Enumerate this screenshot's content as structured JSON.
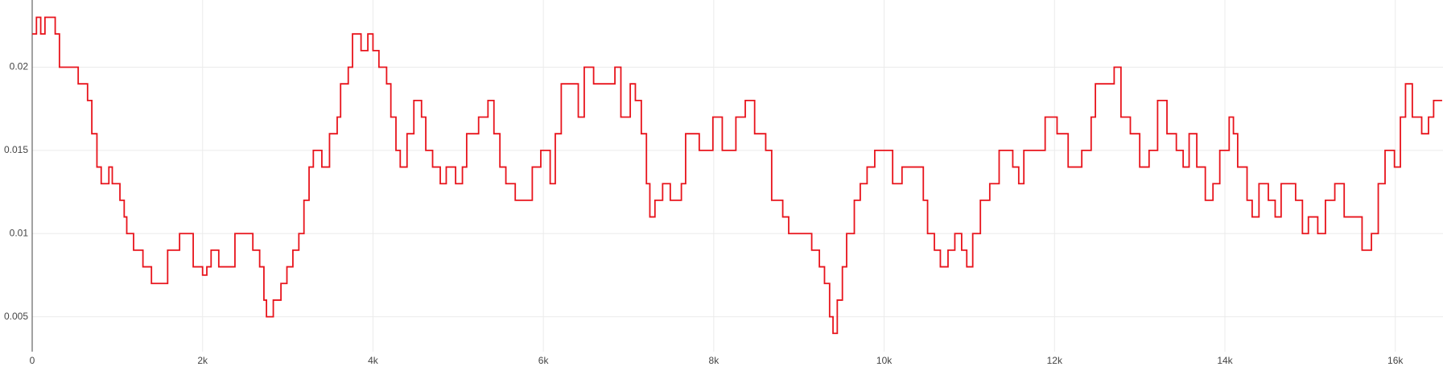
{
  "chart_data": {
    "type": "line",
    "step": true,
    "grid": true,
    "x": [
      0,
      50,
      100,
      150,
      200,
      270,
      320,
      430,
      540,
      650,
      700,
      760,
      810,
      900,
      940,
      1030,
      1080,
      1110,
      1190,
      1300,
      1400,
      1550,
      1590,
      1670,
      1730,
      1840,
      1890,
      2000,
      2050,
      2100,
      2190,
      2380,
      2520,
      2590,
      2670,
      2720,
      2750,
      2830,
      2920,
      2990,
      3060,
      3130,
      3190,
      3250,
      3300,
      3400,
      3490,
      3580,
      3620,
      3710,
      3760,
      3860,
      3940,
      4000,
      4070,
      4160,
      4210,
      4270,
      4320,
      4400,
      4480,
      4570,
      4620,
      4700,
      4790,
      4860,
      4970,
      5050,
      5100,
      5190,
      5240,
      5350,
      5420,
      5490,
      5560,
      5670,
      5800,
      5870,
      5970,
      6080,
      6140,
      6210,
      6320,
      6410,
      6480,
      6590,
      6750,
      6840,
      6910,
      7020,
      7080,
      7150,
      7210,
      7250,
      7310,
      7400,
      7490,
      7620,
      7670,
      7830,
      7990,
      8100,
      8260,
      8370,
      8480,
      8610,
      8680,
      8810,
      8880,
      8970,
      9080,
      9150,
      9240,
      9300,
      9360,
      9400,
      9450,
      9510,
      9560,
      9650,
      9720,
      9800,
      9890,
      9990,
      10100,
      10210,
      10400,
      10460,
      10510,
      10590,
      10660,
      10750,
      10830,
      10910,
      10970,
      11040,
      11130,
      11240,
      11350,
      11510,
      11580,
      11640,
      11780,
      11890,
      12030,
      12160,
      12320,
      12430,
      12480,
      12590,
      12700,
      12780,
      12890,
      13000,
      13110,
      13210,
      13320,
      13430,
      13510,
      13580,
      13670,
      13770,
      13860,
      13940,
      14050,
      14100,
      14150,
      14260,
      14320,
      14400,
      14510,
      14590,
      14660,
      14830,
      14910,
      14980,
      15090,
      15180,
      15290,
      15400,
      15500,
      15610,
      15720,
      15800,
      15880,
      15990,
      16060,
      16120,
      16200,
      16310,
      16390,
      16450,
      16550
    ],
    "series": [
      {
        "color": "#e8141c",
        "values": [
          0.022,
          0.023,
          0.022,
          0.023,
          0.023,
          0.022,
          0.02,
          0.02,
          0.019,
          0.018,
          0.016,
          0.014,
          0.013,
          0.014,
          0.013,
          0.012,
          0.011,
          0.01,
          0.009,
          0.008,
          0.007,
          0.007,
          0.009,
          0.009,
          0.01,
          0.01,
          0.008,
          0.0075,
          0.008,
          0.009,
          0.008,
          0.01,
          0.01,
          0.009,
          0.008,
          0.006,
          0.005,
          0.006,
          0.007,
          0.008,
          0.009,
          0.01,
          0.012,
          0.014,
          0.015,
          0.014,
          0.016,
          0.017,
          0.019,
          0.02,
          0.022,
          0.021,
          0.022,
          0.021,
          0.02,
          0.019,
          0.017,
          0.015,
          0.014,
          0.016,
          0.018,
          0.017,
          0.015,
          0.014,
          0.013,
          0.014,
          0.013,
          0.014,
          0.016,
          0.016,
          0.017,
          0.018,
          0.016,
          0.014,
          0.013,
          0.012,
          0.012,
          0.014,
          0.015,
          0.013,
          0.016,
          0.019,
          0.019,
          0.017,
          0.02,
          0.019,
          0.019,
          0.02,
          0.017,
          0.019,
          0.018,
          0.016,
          0.013,
          0.011,
          0.012,
          0.013,
          0.012,
          0.013,
          0.016,
          0.015,
          0.017,
          0.015,
          0.017,
          0.018,
          0.016,
          0.015,
          0.012,
          0.011,
          0.01,
          0.01,
          0.01,
          0.009,
          0.008,
          0.007,
          0.005,
          0.004,
          0.006,
          0.008,
          0.01,
          0.012,
          0.013,
          0.014,
          0.015,
          0.015,
          0.013,
          0.014,
          0.014,
          0.012,
          0.01,
          0.009,
          0.008,
          0.009,
          0.01,
          0.009,
          0.008,
          0.01,
          0.012,
          0.013,
          0.015,
          0.014,
          0.013,
          0.015,
          0.015,
          0.017,
          0.016,
          0.014,
          0.015,
          0.017,
          0.019,
          0.019,
          0.02,
          0.017,
          0.016,
          0.014,
          0.015,
          0.018,
          0.016,
          0.015,
          0.014,
          0.016,
          0.014,
          0.012,
          0.013,
          0.015,
          0.017,
          0.016,
          0.014,
          0.012,
          0.011,
          0.013,
          0.012,
          0.011,
          0.013,
          0.012,
          0.01,
          0.011,
          0.01,
          0.012,
          0.013,
          0.011,
          0.011,
          0.009,
          0.01,
          0.013,
          0.015,
          0.014,
          0.017,
          0.019,
          0.017,
          0.016,
          0.017,
          0.018,
          0.018
        ]
      }
    ],
    "xlim": [
      0,
      16560
    ],
    "ylim": [
      0.0029,
      0.02404
    ],
    "xticks": [
      0,
      {
        "value": 2000,
        "label": "2k"
      },
      {
        "value": 4000,
        "label": "4k"
      },
      {
        "value": 6000,
        "label": "6k"
      },
      {
        "value": 8000,
        "label": "8k"
      },
      {
        "value": 10000,
        "label": "10k"
      },
      {
        "value": 12000,
        "label": "12k"
      },
      {
        "value": 14000,
        "label": "14k"
      },
      {
        "value": 16000,
        "label": "16k"
      }
    ],
    "yticks": [
      0.005,
      0.01,
      0.015,
      0.02
    ]
  }
}
